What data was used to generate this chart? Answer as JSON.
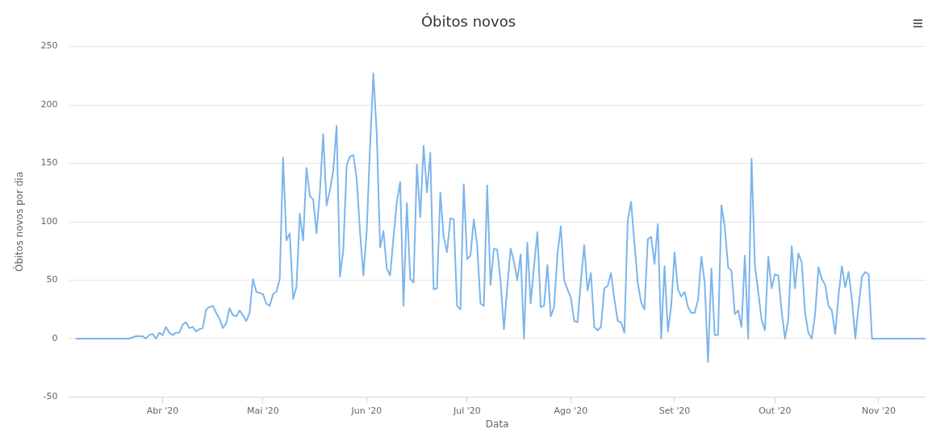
{
  "chart_data": {
    "type": "line",
    "title": "Óbitos novos",
    "xlabel": "Data",
    "ylabel": "Óbitos novos por dia",
    "x": [
      "2020-03-06",
      "2020-03-22",
      "2020-03-24",
      "2020-03-26",
      "2020-03-27",
      "2020-03-28",
      "2020-03-29",
      "2020-03-30",
      "2020-03-31",
      "2020-04-01",
      "2020-04-02",
      "2020-04-03",
      "2020-04-04",
      "2020-04-05",
      "2020-04-06",
      "2020-04-07",
      "2020-04-08",
      "2020-04-09",
      "2020-04-10",
      "2020-04-11",
      "2020-04-12",
      "2020-04-13",
      "2020-04-14",
      "2020-04-15",
      "2020-04-16",
      "2020-04-17",
      "2020-04-18",
      "2020-04-19",
      "2020-04-20",
      "2020-04-21",
      "2020-04-22",
      "2020-04-23",
      "2020-04-24",
      "2020-04-25",
      "2020-04-26",
      "2020-04-27",
      "2020-04-28",
      "2020-04-29",
      "2020-04-30",
      "2020-05-01",
      "2020-05-02",
      "2020-05-03",
      "2020-05-04",
      "2020-05-05",
      "2020-05-06",
      "2020-05-07",
      "2020-05-08",
      "2020-05-09",
      "2020-05-10",
      "2020-05-11",
      "2020-05-12",
      "2020-05-13",
      "2020-05-14",
      "2020-05-15",
      "2020-05-16",
      "2020-05-17",
      "2020-05-18",
      "2020-05-19",
      "2020-05-20",
      "2020-05-21",
      "2020-05-22",
      "2020-05-23",
      "2020-05-24",
      "2020-05-25",
      "2020-05-26",
      "2020-05-27",
      "2020-05-28",
      "2020-05-29",
      "2020-05-30",
      "2020-05-31",
      "2020-06-01",
      "2020-06-02",
      "2020-06-03",
      "2020-06-04",
      "2020-06-05",
      "2020-06-06",
      "2020-06-07",
      "2020-06-08",
      "2020-06-09",
      "2020-06-10",
      "2020-06-11",
      "2020-06-12",
      "2020-06-13",
      "2020-06-14",
      "2020-06-15",
      "2020-06-16",
      "2020-06-17",
      "2020-06-18",
      "2020-06-19",
      "2020-06-20",
      "2020-06-21",
      "2020-06-22",
      "2020-06-23",
      "2020-06-24",
      "2020-06-25",
      "2020-06-26",
      "2020-06-27",
      "2020-06-28",
      "2020-06-29",
      "2020-06-30",
      "2020-07-01",
      "2020-07-02",
      "2020-07-03",
      "2020-07-04",
      "2020-07-05",
      "2020-07-06",
      "2020-07-07",
      "2020-07-08",
      "2020-07-09",
      "2020-07-10",
      "2020-07-11",
      "2020-07-12",
      "2020-07-13",
      "2020-07-14",
      "2020-07-15",
      "2020-07-16",
      "2020-07-17",
      "2020-07-18",
      "2020-07-19",
      "2020-07-20",
      "2020-07-21",
      "2020-07-22",
      "2020-07-23",
      "2020-07-24",
      "2020-07-25",
      "2020-07-26",
      "2020-07-27",
      "2020-07-28",
      "2020-07-29",
      "2020-07-30",
      "2020-07-31",
      "2020-08-01",
      "2020-08-02",
      "2020-08-03",
      "2020-08-04",
      "2020-08-05",
      "2020-08-06",
      "2020-08-07",
      "2020-08-08",
      "2020-08-09",
      "2020-08-10",
      "2020-08-11",
      "2020-08-12",
      "2020-08-13",
      "2020-08-14",
      "2020-08-15",
      "2020-08-16",
      "2020-08-17",
      "2020-08-18",
      "2020-08-19",
      "2020-08-20",
      "2020-08-21",
      "2020-08-22",
      "2020-08-23",
      "2020-08-24",
      "2020-08-25",
      "2020-08-26",
      "2020-08-27",
      "2020-08-28",
      "2020-08-29",
      "2020-08-30",
      "2020-08-31",
      "2020-09-01",
      "2020-09-02",
      "2020-09-03",
      "2020-09-04",
      "2020-09-05",
      "2020-09-06",
      "2020-09-07",
      "2020-09-08",
      "2020-09-09",
      "2020-09-10",
      "2020-09-11",
      "2020-09-12",
      "2020-09-13",
      "2020-09-14",
      "2020-09-15",
      "2020-09-16",
      "2020-09-17",
      "2020-09-18",
      "2020-09-19",
      "2020-09-20",
      "2020-09-21",
      "2020-09-22",
      "2020-09-23",
      "2020-09-24",
      "2020-09-25",
      "2020-09-26",
      "2020-09-27",
      "2020-09-28",
      "2020-09-29",
      "2020-09-30",
      "2020-10-01",
      "2020-10-02",
      "2020-10-03",
      "2020-10-04",
      "2020-10-05",
      "2020-10-06",
      "2020-10-07",
      "2020-10-08",
      "2020-10-09",
      "2020-10-10",
      "2020-10-11",
      "2020-10-12",
      "2020-10-13",
      "2020-10-14",
      "2020-10-15",
      "2020-10-16",
      "2020-10-17",
      "2020-10-18",
      "2020-10-19",
      "2020-10-20",
      "2020-10-21",
      "2020-10-22",
      "2020-10-23",
      "2020-10-24",
      "2020-10-25",
      "2020-10-26",
      "2020-10-27",
      "2020-10-28",
      "2020-10-29",
      "2020-10-30",
      "2020-11-15"
    ],
    "series": [
      {
        "color": "#7cb5ec",
        "values": [
          0,
          0,
          2,
          2,
          0,
          3,
          4,
          0,
          5,
          3,
          10,
          5,
          3,
          5,
          5,
          12,
          14,
          9,
          10,
          6,
          8,
          9,
          25,
          27,
          28,
          22,
          17,
          9,
          13,
          26,
          20,
          19,
          24,
          20,
          15,
          22,
          51,
          40,
          39,
          38,
          30,
          28,
          38,
          40,
          51,
          155,
          84,
          90,
          34,
          44,
          107,
          84,
          146,
          122,
          119,
          90,
          125,
          175,
          114,
          127,
          144,
          182,
          53,
          76,
          148,
          156,
          157,
          137,
          91,
          54,
          92,
          165,
          227,
          175,
          78,
          92,
          60,
          54,
          87,
          117,
          134,
          28,
          116,
          51,
          48,
          149,
          104,
          165,
          125,
          159,
          42,
          43,
          125,
          87,
          74,
          103,
          102,
          28,
          25,
          132,
          68,
          71,
          102,
          80,
          30,
          28,
          131,
          46,
          77,
          76,
          49,
          8,
          44,
          77,
          66,
          50,
          72,
          0,
          82,
          30,
          62,
          91,
          27,
          28,
          63,
          19,
          27,
          72,
          96,
          50,
          42,
          35,
          15,
          14,
          49,
          80,
          41,
          56,
          10,
          7,
          10,
          43,
          45,
          56,
          34,
          15,
          14,
          5,
          101,
          117,
          82,
          48,
          31,
          25,
          85,
          87,
          64,
          98,
          0,
          62,
          6,
          28,
          74,
          42,
          36,
          40,
          27,
          22,
          22,
          33,
          70,
          48,
          -20,
          60,
          3,
          3,
          114,
          96,
          61,
          58,
          21,
          24,
          10,
          71,
          0,
          154,
          63,
          40,
          16,
          7,
          70,
          43,
          55,
          54,
          23,
          0,
          17,
          79,
          43,
          73,
          65,
          22,
          5,
          0,
          21,
          61,
          51,
          46,
          28,
          24,
          4,
          37,
          62,
          44,
          57,
          33,
          0,
          28,
          53,
          57,
          55,
          0,
          0
        ]
      }
    ],
    "xlim": [
      "2020-03-04",
      "2020-11-15"
    ],
    "xticks": [
      {
        "value": "2020-04-01",
        "label": "Abr '20"
      },
      {
        "value": "2020-05-01",
        "label": "Mai '20"
      },
      {
        "value": "2020-06-01",
        "label": "Jun '20"
      },
      {
        "value": "2020-07-01",
        "label": "Jul '20"
      },
      {
        "value": "2020-08-01",
        "label": "Ago '20"
      },
      {
        "value": "2020-09-01",
        "label": "Set '20"
      },
      {
        "value": "2020-10-01",
        "label": "Out '20"
      },
      {
        "value": "2020-11-01",
        "label": "Nov '20"
      }
    ],
    "ylim": [
      -50,
      250
    ],
    "yticks": [
      -50,
      0,
      50,
      100,
      150,
      200,
      250
    ],
    "grid": "y",
    "legend": false,
    "marker": "none",
    "line_style": "solid"
  }
}
